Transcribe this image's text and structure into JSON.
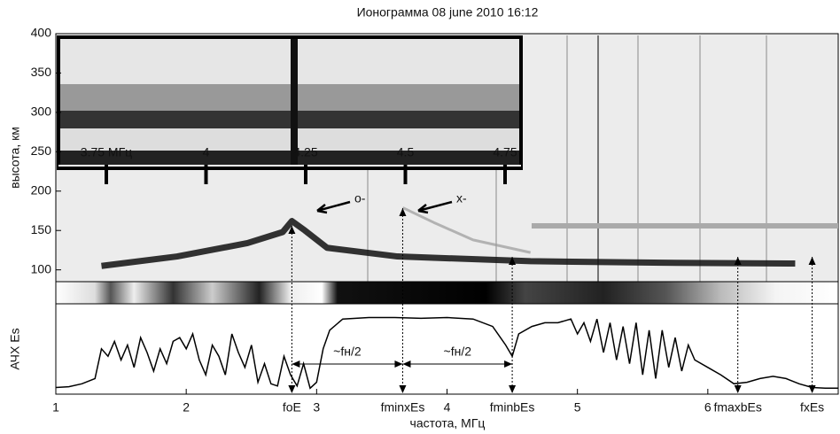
{
  "chart_data": [
    {
      "type": "ionogram",
      "title": "Ионограмма 08 june 2010 16:12",
      "ylabel": "высота, км",
      "xlim": [
        1,
        7
      ],
      "ylim": [
        85,
        400
      ],
      "yticks": [
        100,
        150,
        200,
        250,
        300,
        350,
        400
      ],
      "series": [
        {
          "color": "#111111",
          "x": [
            1.35,
            1.93,
            2.47,
            2.74,
            2.81,
            2.91,
            3.08,
            3.62,
            4.64,
            5.66,
            6.67
          ],
          "values": [
            105,
            117,
            134,
            148,
            162,
            150,
            128,
            117,
            111,
            109,
            108
          ]
        },
        {
          "color": "#9a9a9a",
          "x": [
            3.66,
            3.9,
            4.2,
            4.64
          ],
          "values": [
            179,
            160,
            138,
            122
          ]
        }
      ],
      "inset": {
        "xlim": [
          3.63,
          4.79
        ],
        "xticks": [
          {
            "value": 3.75,
            "label": "3.75 МГц"
          },
          4,
          4.25,
          4.5,
          4.75
        ],
        "annotations": [
          {
            "text": "о-"
          },
          {
            "text": "х-"
          }
        ]
      }
    },
    {
      "type": "line",
      "ylabel": "АЧХ Es",
      "xlabel": "частота, МГц",
      "color": "#000000",
      "xlim": [
        1,
        7
      ],
      "ylim": [
        0,
        1
      ],
      "xticks": [
        1,
        2,
        3,
        4,
        5,
        6
      ],
      "x": [
        1.0,
        1.1,
        1.2,
        1.3,
        1.35,
        1.4,
        1.45,
        1.5,
        1.55,
        1.6,
        1.65,
        1.7,
        1.75,
        1.8,
        1.85,
        1.9,
        1.95,
        2.0,
        2.05,
        2.1,
        2.15,
        2.2,
        2.25,
        2.3,
        2.35,
        2.4,
        2.45,
        2.5,
        2.55,
        2.6,
        2.65,
        2.7,
        2.75,
        2.8,
        2.85,
        2.9,
        2.95,
        3.0,
        3.05,
        3.1,
        3.2,
        3.4,
        3.6,
        3.8,
        4.0,
        4.2,
        4.35,
        4.45,
        4.5,
        4.55,
        4.65,
        4.75,
        4.85,
        4.95,
        5.0,
        5.05,
        5.1,
        5.15,
        5.2,
        5.25,
        5.3,
        5.35,
        5.4,
        5.45,
        5.5,
        5.55,
        5.6,
        5.65,
        5.7,
        5.75,
        5.8,
        5.85,
        5.9,
        6.0,
        6.1,
        6.2,
        6.3,
        6.4,
        6.5,
        6.6,
        6.7,
        6.8,
        6.9,
        7.0
      ],
      "values": [
        0.03,
        0.04,
        0.08,
        0.15,
        0.55,
        0.45,
        0.65,
        0.4,
        0.6,
        0.3,
        0.7,
        0.5,
        0.25,
        0.55,
        0.35,
        0.65,
        0.7,
        0.55,
        0.75,
        0.4,
        0.2,
        0.6,
        0.45,
        0.2,
        0.75,
        0.5,
        0.3,
        0.6,
        0.1,
        0.35,
        0.08,
        0.05,
        0.45,
        0.2,
        0.05,
        0.35,
        0.02,
        0.1,
        0.55,
        0.8,
        0.95,
        0.97,
        0.97,
        0.96,
        0.97,
        0.95,
        0.85,
        0.6,
        0.45,
        0.75,
        0.85,
        0.9,
        0.9,
        0.95,
        0.75,
        0.9,
        0.65,
        0.95,
        0.5,
        0.9,
        0.4,
        0.85,
        0.35,
        0.9,
        0.2,
        0.8,
        0.15,
        0.8,
        0.3,
        0.7,
        0.25,
        0.6,
        0.4,
        0.3,
        0.2,
        0.08,
        0.1,
        0.15,
        0.18,
        0.15,
        0.08,
        0.03,
        0.02,
        0.02
      ],
      "markers": [
        {
          "label": "foE",
          "x": 2.81
        },
        {
          "label": "fminxEs",
          "x": 3.66
        },
        {
          "label": "fminbEs",
          "x": 4.5
        },
        {
          "label": "fmaxbEs",
          "x": 6.23
        },
        {
          "label": "fxEs",
          "x": 6.8
        }
      ],
      "spans": [
        {
          "label": "~fн/2"
        },
        {
          "label": "~fн/2"
        }
      ]
    }
  ]
}
